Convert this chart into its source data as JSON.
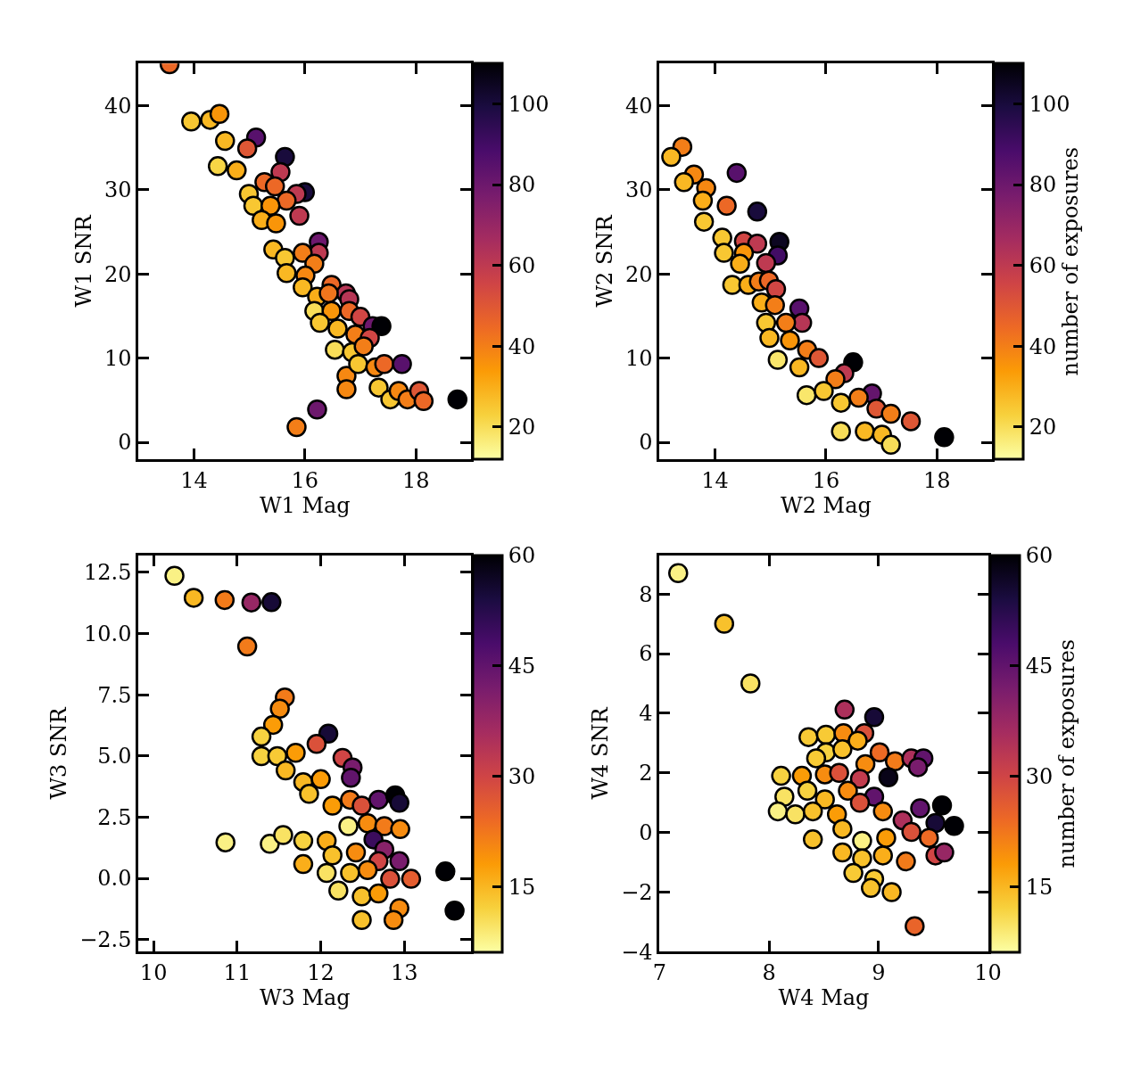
{
  "chart_data": [
    {
      "type": "scatter",
      "xlabel": "W1 Mag",
      "ylabel": "W1 SNR",
      "marker": "circle",
      "xlim": [
        13,
        19
      ],
      "ylim": [
        -2,
        45
      ],
      "xticks": [
        14,
        16,
        18
      ],
      "yticks": [
        0,
        10,
        20,
        30,
        40
      ],
      "clim": [
        12,
        110
      ],
      "cticks": [
        20,
        40,
        60,
        80,
        100
      ],
      "x": [
        13.56,
        13.95,
        14.29,
        14.46,
        14.56,
        15.12,
        14.96,
        14.43,
        14.77,
        15.64,
        15.56,
        15.27,
        15.46,
        16.0,
        15.85,
        14.99,
        15.07,
        15.67,
        15.38,
        15.9,
        15.22,
        15.48,
        16.25,
        16.25,
        15.43,
        15.64,
        15.96,
        16.17,
        15.67,
        16.01,
        16.48,
        16.74,
        16.8,
        15.96,
        16.22,
        16.43,
        16.17,
        16.48,
        16.8,
        17.0,
        17.22,
        17.38,
        16.27,
        16.59,
        16.91,
        17.17,
        16.54,
        16.85,
        17.06,
        16.75,
        16.75,
        16.96,
        17.27,
        17.43,
        17.75,
        17.33,
        17.54,
        17.69,
        17.85,
        18.06,
        18.14,
        18.75,
        16.22,
        15.85
      ],
      "values": [
        44.9,
        38.1,
        38.3,
        39.0,
        35.8,
        36.2,
        34.9,
        32.8,
        32.3,
        33.9,
        32.1,
        30.9,
        30.4,
        29.7,
        29.5,
        29.5,
        28.1,
        28.7,
        28.1,
        26.9,
        26.4,
        26.0,
        23.8,
        22.5,
        22.9,
        21.9,
        22.5,
        21.2,
        20.1,
        19.8,
        18.7,
        17.7,
        17.0,
        18.4,
        17.3,
        17.7,
        15.6,
        15.6,
        15.6,
        14.9,
        13.8,
        13.8,
        14.2,
        13.5,
        12.8,
        12.4,
        11.0,
        10.7,
        11.4,
        7.9,
        6.3,
        9.3,
        8.9,
        9.3,
        9.3,
        6.5,
        5.1,
        6.1,
        5.1,
        6.1,
        4.9,
        5.1,
        3.9,
        1.8
      ],
      "cvalues": [
        45,
        25,
        28,
        35,
        28,
        85,
        50,
        22,
        30,
        100,
        60,
        45,
        45,
        100,
        60,
        25,
        25,
        45,
        35,
        60,
        30,
        35,
        80,
        60,
        28,
        25,
        40,
        40,
        28,
        38,
        45,
        62,
        62,
        28,
        30,
        42,
        20,
        35,
        45,
        55,
        80,
        110,
        25,
        28,
        40,
        55,
        20,
        25,
        40,
        38,
        38,
        25,
        38,
        45,
        85,
        25,
        25,
        38,
        40,
        50,
        45,
        110,
        80,
        40
      ]
    },
    {
      "type": "scatter",
      "xlabel": "W2 Mag",
      "ylabel": "W2 SNR",
      "clabel": "number of exposures",
      "marker": "circle",
      "xlim": [
        13,
        19
      ],
      "ylim": [
        -2,
        45
      ],
      "xticks": [
        14,
        16,
        18
      ],
      "yticks": [
        0,
        10,
        20,
        30,
        40
      ],
      "clim": [
        12,
        110
      ],
      "cticks": [
        20,
        40,
        60,
        80,
        100
      ],
      "x": [
        13.41,
        13.21,
        13.62,
        13.44,
        13.84,
        13.78,
        14.21,
        14.39,
        13.8,
        14.76,
        14.13,
        14.16,
        14.52,
        14.76,
        15.16,
        15.13,
        14.92,
        14.52,
        14.45,
        14.31,
        14.6,
        14.79,
        14.97,
        15.1,
        14.84,
        15.08,
        15.52,
        15.57,
        14.92,
        15.28,
        14.98,
        15.35,
        15.66,
        15.87,
        15.13,
        15.52,
        16.49,
        16.33,
        16.17,
        15.65,
        15.96,
        16.83,
        16.59,
        16.27,
        16.91,
        17.17,
        17.53,
        16.27,
        16.7,
        17.01,
        17.17,
        18.13
      ],
      "values": [
        35.1,
        33.9,
        31.8,
        30.9,
        30.2,
        28.7,
        28.1,
        32.0,
        26.2,
        27.4,
        24.3,
        22.5,
        23.9,
        23.6,
        23.8,
        22.2,
        21.3,
        22.5,
        21.2,
        18.7,
        18.7,
        19.1,
        19.2,
        18.2,
        16.6,
        16.3,
        15.9,
        14.2,
        14.2,
        14.2,
        12.4,
        12.1,
        11.0,
        10.0,
        9.8,
        8.9,
        9.5,
        8.2,
        7.5,
        5.6,
        6.1,
        5.8,
        5.3,
        4.7,
        4.0,
        3.4,
        2.5,
        1.3,
        1.3,
        0.9,
        -0.3,
        0.6
      ],
      "cvalues": [
        40,
        28,
        38,
        28,
        38,
        30,
        45,
        85,
        25,
        100,
        25,
        25,
        55,
        60,
        105,
        90,
        60,
        35,
        30,
        25,
        30,
        40,
        45,
        55,
        30,
        40,
        85,
        62,
        25,
        40,
        28,
        35,
        40,
        50,
        18,
        28,
        110,
        60,
        40,
        18,
        25,
        82,
        40,
        25,
        50,
        40,
        50,
        20,
        28,
        28,
        20,
        110
      ]
    },
    {
      "type": "scatter",
      "xlabel": "W3 Mag",
      "ylabel": "W3 SNR",
      "marker": "circle",
      "xlim": [
        9.82,
        13.8
      ],
      "ylim": [
        -3.0,
        13.2
      ],
      "xticks": [
        10,
        11,
        12,
        13
      ],
      "yticks": [
        {
          "value": -2.5,
          "label": "−2.5"
        },
        {
          "value": 0,
          "label": "0.0"
        },
        {
          "value": 2.5,
          "label": "2.5"
        },
        {
          "value": 5,
          "label": "5.0"
        },
        {
          "value": 7.5,
          "label": "7.5"
        },
        {
          "value": 10,
          "label": "10.0"
        },
        {
          "value": 12.5,
          "label": "12.5"
        }
      ],
      "clim": [
        6.2,
        60
      ],
      "cticks": [
        15,
        30,
        45,
        60
      ],
      "x": [
        10.25,
        10.48,
        10.85,
        11.17,
        11.41,
        11.12,
        11.57,
        11.51,
        11.43,
        11.29,
        12.09,
        11.95,
        11.29,
        11.48,
        11.7,
        12.26,
        12.38,
        12.36,
        11.58,
        11.79,
        12.0,
        11.86,
        12.14,
        12.35,
        12.49,
        12.69,
        12.89,
        12.94,
        12.33,
        12.56,
        12.76,
        12.95,
        10.86,
        11.39,
        11.55,
        11.79,
        12.07,
        12.63,
        12.76,
        12.14,
        12.42,
        12.69,
        12.94,
        11.79,
        12.07,
        12.35,
        12.56,
        12.83,
        13.08,
        12.21,
        12.49,
        12.69,
        12.94,
        12.49,
        12.87,
        13.49,
        13.6
      ],
      "values": [
        12.36,
        11.46,
        11.37,
        11.27,
        11.28,
        9.47,
        7.39,
        6.93,
        6.27,
        5.79,
        5.91,
        5.49,
        4.99,
        4.99,
        5.13,
        4.92,
        4.53,
        4.11,
        4.41,
        3.93,
        4.05,
        3.45,
        2.97,
        3.21,
        2.97,
        3.21,
        3.39,
        3.09,
        2.13,
        2.25,
        2.13,
        2.01,
        1.47,
        1.41,
        1.77,
        1.53,
        1.53,
        1.59,
        1.18,
        0.94,
        1.06,
        0.7,
        0.7,
        0.58,
        0.22,
        0.22,
        0.34,
        -0.02,
        -0.02,
        -0.5,
        -0.74,
        -0.62,
        -1.22,
        -1.7,
        -1.7,
        0.28,
        -1.32
      ],
      "cvalues": [
        8,
        15,
        22,
        38,
        55,
        22,
        22,
        20,
        18,
        12,
        55,
        28,
        12,
        13,
        18,
        30,
        42,
        45,
        15,
        15,
        18,
        14,
        18,
        22,
        28,
        45,
        60,
        55,
        8,
        20,
        22,
        20,
        8,
        8,
        10,
        12,
        16,
        50,
        40,
        14,
        20,
        30,
        42,
        16,
        10,
        14,
        20,
        28,
        26,
        10,
        14,
        18,
        20,
        14,
        20,
        60,
        60
      ]
    },
    {
      "type": "scatter",
      "xlabel": "W4 Mag",
      "ylabel": "W4 SNR",
      "clabel": "number of exposures",
      "marker": "circle",
      "xlim": [
        7,
        10
      ],
      "ylim": [
        -4,
        9.3
      ],
      "xticks": [
        7,
        8,
        9,
        10
      ],
      "yticks": [
        {
          "value": -4,
          "label": "−4"
        },
        {
          "value": -2,
          "label": "−2"
        },
        0,
        2,
        4,
        6,
        8
      ],
      "clim": [
        6.2,
        60
      ],
      "cticks": [
        15,
        30,
        45,
        60
      ],
      "x": [
        7.17,
        7.59,
        7.83,
        8.69,
        8.96,
        8.36,
        8.52,
        8.68,
        8.87,
        8.52,
        8.67,
        8.81,
        8.43,
        8.88,
        9.01,
        9.15,
        9.3,
        9.41,
        9.36,
        9.09,
        8.11,
        8.3,
        8.51,
        8.64,
        8.83,
        8.14,
        8.08,
        8.35,
        8.51,
        8.72,
        8.96,
        8.83,
        8.24,
        8.4,
        8.62,
        9.04,
        9.22,
        9.38,
        9.58,
        9.69,
        9.52,
        8.4,
        8.67,
        8.85,
        9.07,
        9.3,
        9.46,
        8.67,
        8.85,
        9.04,
        9.25,
        9.52,
        9.6,
        8.77,
        8.96,
        8.93,
        9.12,
        9.33
      ],
      "values": [
        8.7,
        7.0,
        5.0,
        4.12,
        3.87,
        3.2,
        3.28,
        3.33,
        3.33,
        2.69,
        2.79,
        3.08,
        2.49,
        2.29,
        2.69,
        2.39,
        2.49,
        2.49,
        2.19,
        1.85,
        1.9,
        1.9,
        1.95,
        2.0,
        1.8,
        1.2,
        0.71,
        1.4,
        1.11,
        1.4,
        1.2,
        1.0,
        0.61,
        0.71,
        0.61,
        0.71,
        0.41,
        0.81,
        0.91,
        0.22,
        0.32,
        -0.23,
        0.12,
        -0.28,
        -0.18,
        0.02,
        -0.18,
        -0.67,
        -0.87,
        -0.77,
        -0.97,
        -0.77,
        -0.67,
        -1.36,
        -1.56,
        -1.86,
        -2.0,
        -3.14
      ],
      "cvalues": [
        8,
        14,
        10,
        35,
        55,
        13,
        13,
        20,
        28,
        12,
        14,
        16,
        13,
        20,
        24,
        22,
        35,
        45,
        42,
        58,
        12,
        18,
        20,
        28,
        32,
        10,
        8,
        12,
        15,
        20,
        45,
        28,
        10,
        14,
        18,
        20,
        35,
        45,
        60,
        60,
        55,
        14,
        15,
        8,
        18,
        28,
        24,
        15,
        14,
        16,
        22,
        30,
        38,
        13,
        13,
        14,
        15,
        25
      ]
    }
  ]
}
